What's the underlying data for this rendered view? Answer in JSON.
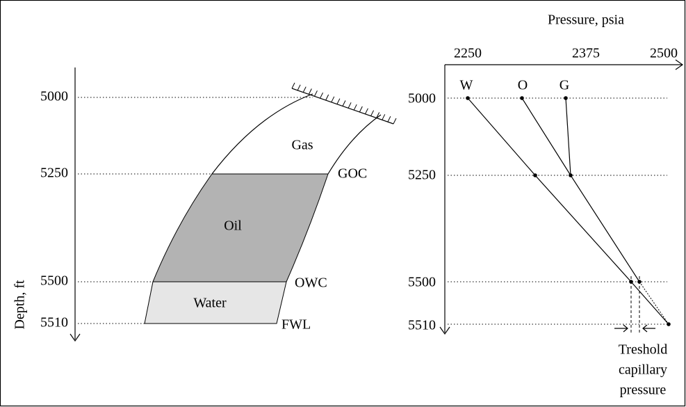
{
  "left": {
    "axis_label": "Depth, ft",
    "depth_ticks": [
      "5000",
      "5250",
      "5500",
      "5510"
    ],
    "zones": [
      "Gas",
      "Oil",
      "Water"
    ],
    "contacts": [
      "GOC",
      "OWC",
      "FWL"
    ]
  },
  "right": {
    "axis_label": "Pressure, psia",
    "pressure_ticks": [
      "2250",
      "2375",
      "2500"
    ],
    "depth_ticks": [
      "5000",
      "5250",
      "5500",
      "5510"
    ],
    "gradients": [
      "W",
      "O",
      "G"
    ],
    "note": [
      "Treshold",
      "capillary",
      "pressure"
    ]
  }
}
